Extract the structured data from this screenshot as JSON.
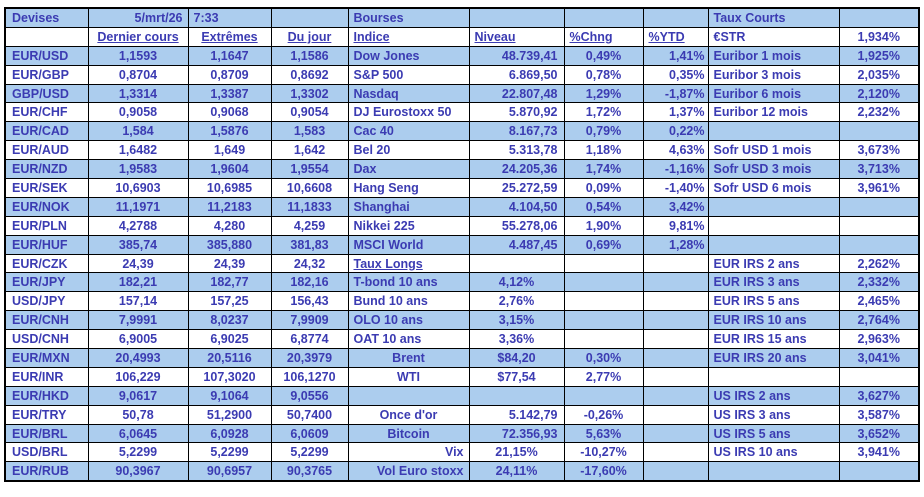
{
  "meta": {
    "date": "5/mrt/26",
    "time": "7:33"
  },
  "colors": {
    "stripe": "#accdee",
    "text": "#3b3bb2",
    "border": "#000000",
    "background": "#ffffff"
  },
  "sections": {
    "devises": {
      "title": "Devises",
      "columns": [
        "Dernier cours",
        "Extrêmes",
        "Du jour"
      ]
    },
    "bourses": {
      "title": "Bourses",
      "columns": [
        "Indice",
        "Niveau",
        "%Chng",
        "%YTD"
      ]
    },
    "taux_courts": {
      "title": "Taux Courts",
      "first_row": {
        "label": "€STR",
        "value": "1,934%"
      }
    }
  },
  "rows": [
    {
      "pair": "EUR/USD",
      "last": "1,1593",
      "extremes": "1,1647",
      "day": "1,1586",
      "index": "Dow Jones",
      "level": "48.739,41",
      "chng": "0,49%",
      "ytd": "1,41%",
      "rate_label": "Euribor 1 mois",
      "rate_value": "1,925%"
    },
    {
      "pair": "EUR/GBP",
      "last": "0,8704",
      "extremes": "0,8709",
      "day": "0,8692",
      "index": "S&P 500",
      "level": "6.869,50",
      "chng": "0,78%",
      "ytd": "0,35%",
      "rate_label": "Euribor 3 mois",
      "rate_value": "2,035%"
    },
    {
      "pair": "GBP/USD",
      "last": "1,3314",
      "extremes": "1,3387",
      "day": "1,3302",
      "index": "Nasdaq",
      "level": "22.807,48",
      "chng": "1,29%",
      "ytd": "-1,87%",
      "rate_label": "Euribor 6 mois",
      "rate_value": "2,120%"
    },
    {
      "pair": "EUR/CHF",
      "last": "0,9058",
      "extremes": "0,9068",
      "day": "0,9054",
      "index": "DJ Eurostoxx 50",
      "level": "5.870,92",
      "chng": "1,72%",
      "ytd": "1,37%",
      "rate_label": "Euribor 12 mois",
      "rate_value": "2,232%"
    },
    {
      "pair": "EUR/CAD",
      "last": "1,584",
      "extremes": "1,5876",
      "day": "1,583",
      "index": "Cac 40",
      "level": "8.167,73",
      "chng": "0,79%",
      "ytd": "0,22%",
      "rate_label": "",
      "rate_value": ""
    },
    {
      "pair": "EUR/AUD",
      "last": "1,6482",
      "extremes": "1,649",
      "day": "1,642",
      "index": "Bel 20",
      "level": "5.313,78",
      "chng": "1,18%",
      "ytd": "4,63%",
      "rate_label": "Sofr USD 1 mois",
      "rate_value": "3,673%"
    },
    {
      "pair": "EUR/NZD",
      "last": "1,9583",
      "extremes": "1,9604",
      "day": "1,9554",
      "index": "Dax",
      "level": "24.205,36",
      "chng": "1,74%",
      "ytd": "-1,16%",
      "rate_label": "Sofr USD 3 mois",
      "rate_value": "3,713%"
    },
    {
      "pair": "EUR/SEK",
      "last": "10,6903",
      "extremes": "10,6985",
      "day": "10,6608",
      "index": "Hang Seng",
      "level": "25.272,59",
      "chng": "0,09%",
      "ytd": "-1,40%",
      "rate_label": "Sofr USD 6 mois",
      "rate_value": "3,961%"
    },
    {
      "pair": "EUR/NOK",
      "last": "11,1971",
      "extremes": "11,2183",
      "day": "11,1833",
      "index": "Shanghai",
      "level": "4.104,50",
      "chng": "0,54%",
      "ytd": "3,42%",
      "rate_label": "",
      "rate_value": ""
    },
    {
      "pair": "EUR/PLN",
      "last": "4,2788",
      "extremes": "4,280",
      "day": "4,259",
      "index": "Nikkei 225",
      "level": "55.278,06",
      "chng": "1,90%",
      "ytd": "9,81%",
      "rate_label": "",
      "rate_value": ""
    },
    {
      "pair": "EUR/HUF",
      "last": "385,74",
      "extremes": "385,880",
      "day": "381,83",
      "index": "MSCI World",
      "level": "4.487,45",
      "chng": "0,69%",
      "ytd": "1,28%",
      "rate_label": "",
      "rate_value": ""
    },
    {
      "pair": "EUR/CZK",
      "last": "24,39",
      "extremes": "24,39",
      "day": "24,32",
      "index": "Taux Longs",
      "level": "",
      "chng": "",
      "ytd": "",
      "rate_label": "EUR IRS 2 ans",
      "rate_value": "2,262%",
      "index_underline": true
    },
    {
      "pair": "EUR/JPY",
      "last": "182,21",
      "extremes": "182,77",
      "day": "182,16",
      "index": "T-bond 10 ans",
      "level": "4,12%",
      "chng": "",
      "ytd": "",
      "rate_label": "EUR IRS 3 ans",
      "rate_value": "2,332%",
      "level_align": "c"
    },
    {
      "pair": "USD/JPY",
      "last": "157,14",
      "extremes": "157,25",
      "day": "156,43",
      "index": "Bund 10 ans",
      "level": "2,76%",
      "chng": "",
      "ytd": "",
      "rate_label": "EUR IRS 5 ans",
      "rate_value": "2,465%",
      "level_align": "c"
    },
    {
      "pair": "EUR/CNH",
      "last": "7,9991",
      "extremes": "8,0237",
      "day": "7,9909",
      "index": "OLO 10 ans",
      "level": "3,15%",
      "chng": "",
      "ytd": "",
      "rate_label": "EUR IRS 10 ans",
      "rate_value": "2,764%",
      "level_align": "c"
    },
    {
      "pair": "USD/CNH",
      "last": "6,9005",
      "extremes": "6,9025",
      "day": "6,8774",
      "index": "OAT 10 ans",
      "level": "3,36%",
      "chng": "",
      "ytd": "",
      "rate_label": "EUR IRS 15 ans",
      "rate_value": "2,963%",
      "level_align": "c"
    },
    {
      "pair": "EUR/MXN",
      "last": "20,4993",
      "extremes": "20,5116",
      "day": "20,3979",
      "index": "Brent",
      "level": "$84,20",
      "chng": "0,30%",
      "ytd": "",
      "rate_label": "EUR IRS 20 ans",
      "rate_value": "3,041%",
      "index_align": "c",
      "level_align": "c"
    },
    {
      "pair": "EUR/INR",
      "last": "106,229",
      "extremes": "107,3020",
      "day": "106,1270",
      "index": "WTI",
      "level": "$77,54",
      "chng": "2,77%",
      "ytd": "",
      "rate_label": "",
      "rate_value": "",
      "index_align": "c",
      "level_align": "c"
    },
    {
      "pair": "EUR/HKD",
      "last": "9,0617",
      "extremes": "9,1064",
      "day": "9,0556",
      "index": "",
      "level": "",
      "chng": "",
      "ytd": "",
      "rate_label": "US IRS 2 ans",
      "rate_value": "3,627%"
    },
    {
      "pair": "EUR/TRY",
      "last": "50,78",
      "extremes": "51,2900",
      "day": "50,7400",
      "index": "Once d'or",
      "level": "5.142,79",
      "chng": "-0,26%",
      "ytd": "",
      "rate_label": "US IRS 3 ans",
      "rate_value": "3,587%",
      "index_align": "c"
    },
    {
      "pair": "EUR/BRL",
      "last": "6,0645",
      "extremes": "6,0928",
      "day": "6,0609",
      "index": "Bitcoin",
      "level": "72.356,93",
      "chng": "5,63%",
      "ytd": "",
      "rate_label": "US IRS 5 ans",
      "rate_value": "3,652%",
      "index_align": "c"
    },
    {
      "pair": "USD/BRL",
      "last": "5,2299",
      "extremes": "5,2299",
      "day": "5,2299",
      "index": "Vix",
      "level": "21,15%",
      "chng": "-10,27%",
      "ytd": "",
      "rate_label": "US IRS 10 ans",
      "rate_value": "3,941%",
      "index_align": "r",
      "level_align": "c"
    },
    {
      "pair": "EUR/RUB",
      "last": "90,3967",
      "extremes": "90,6957",
      "day": "90,3765",
      "index": "Vol Euro stoxx",
      "level": "24,11%",
      "chng": "-17,60%",
      "ytd": "",
      "rate_label": "",
      "rate_value": "",
      "index_align": "r",
      "level_align": "c"
    }
  ]
}
